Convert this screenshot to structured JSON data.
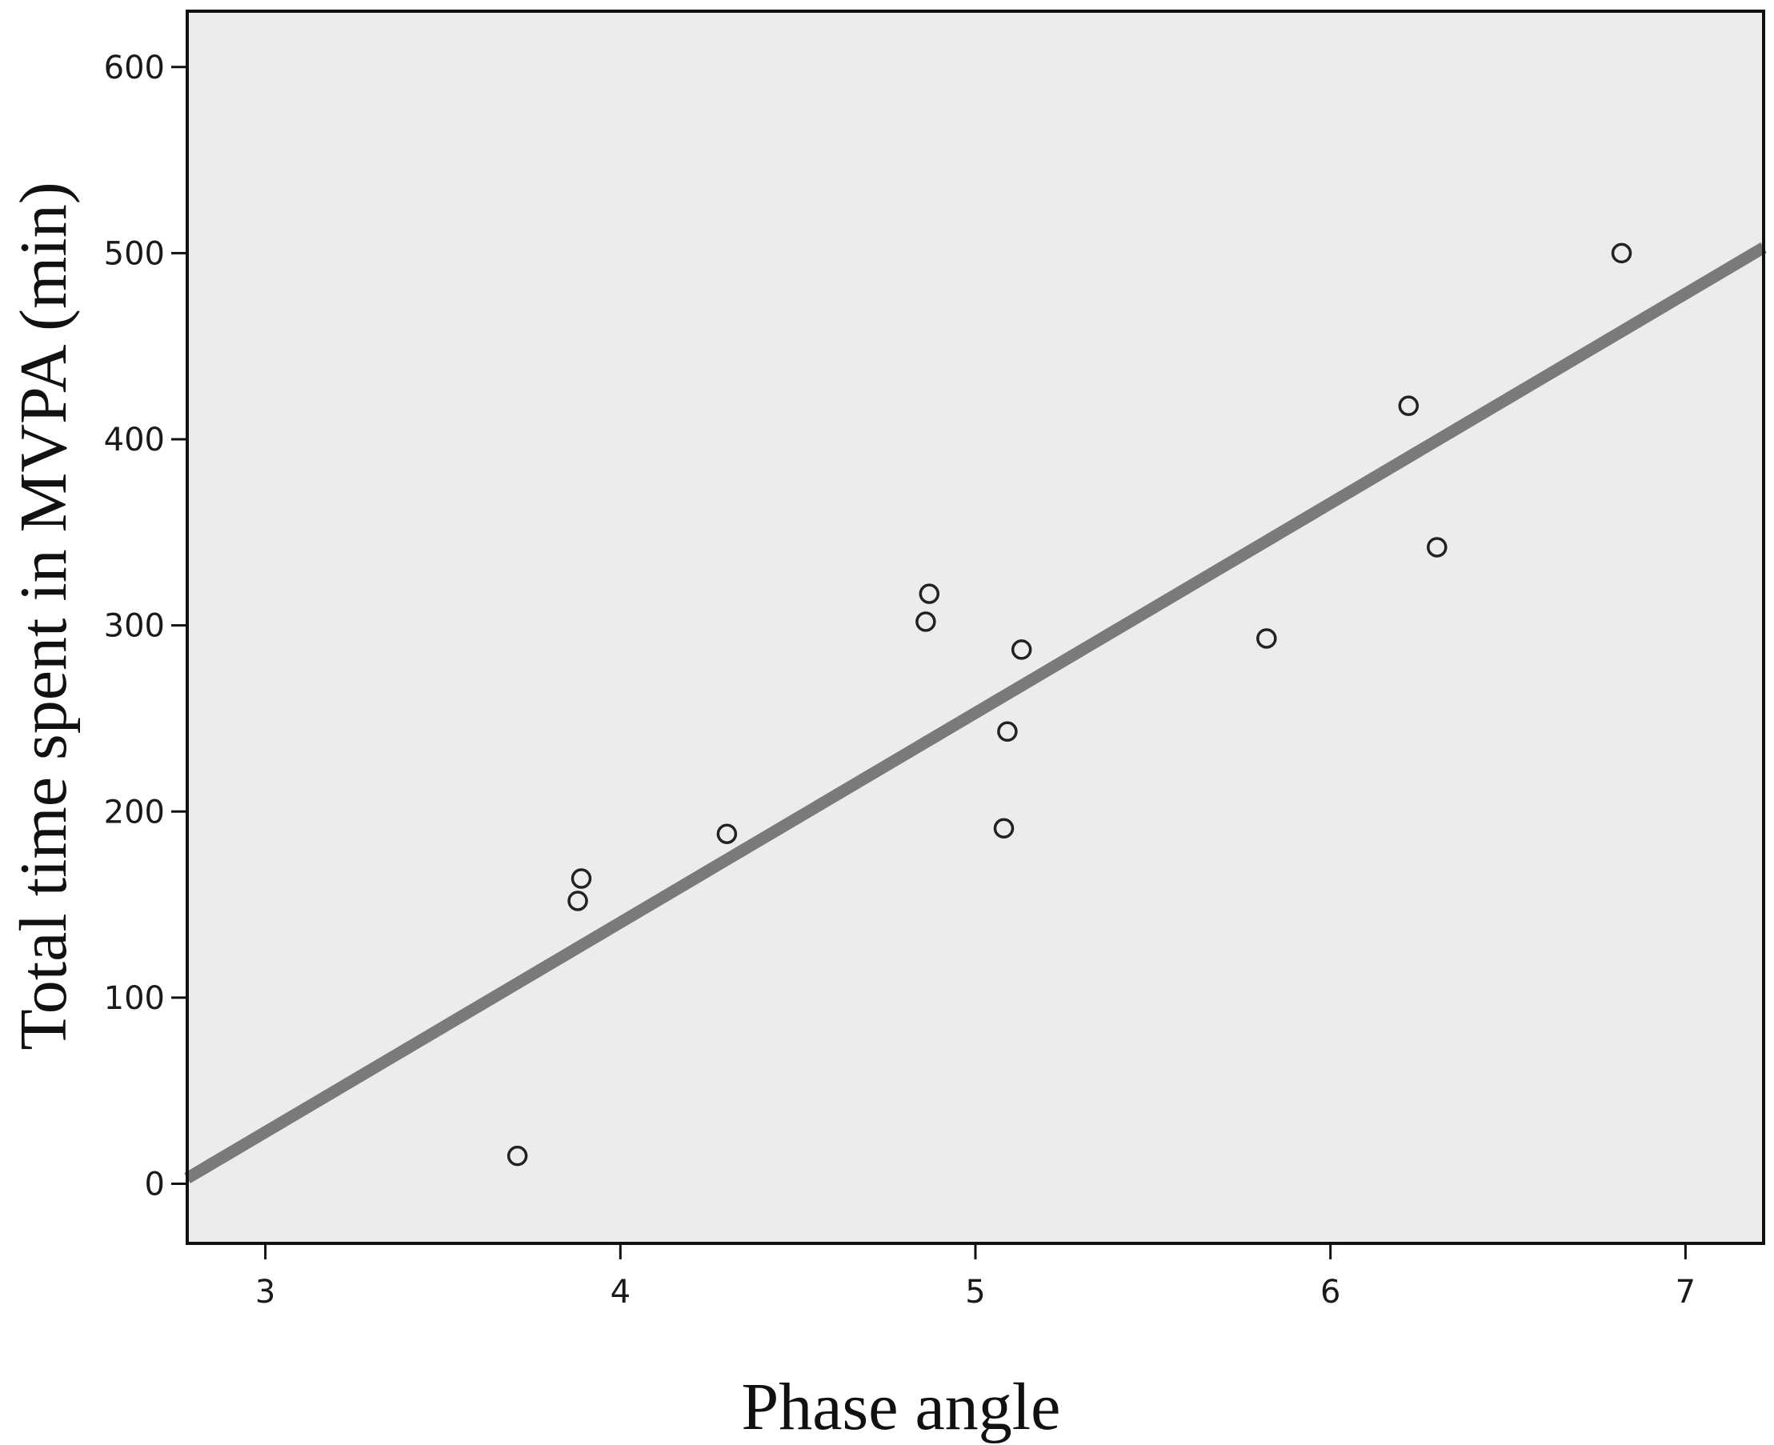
{
  "chart_data": {
    "type": "scatter",
    "title": "",
    "xlabel": "Phase angle",
    "ylabel": "Total time spent in MVPA (min)",
    "xlim": [
      2.78,
      7.22
    ],
    "ylim": [
      -32,
      630
    ],
    "x_ticks": [
      3,
      4,
      5,
      6,
      7
    ],
    "y_ticks": [
      0,
      100,
      200,
      300,
      400,
      500,
      600
    ],
    "grid": false,
    "colors": {
      "plot_background": "#ececec",
      "marker": "#222222",
      "fit_line": "#7a7a7a",
      "frame": "#111111"
    },
    "series": [
      {
        "points": [
          {
            "x": 3.71,
            "y": 15
          },
          {
            "x": 3.88,
            "y": 152
          },
          {
            "x": 3.89,
            "y": 164
          },
          {
            "x": 4.3,
            "y": 188
          },
          {
            "x": 4.86,
            "y": 302
          },
          {
            "x": 4.87,
            "y": 317
          },
          {
            "x": 5.08,
            "y": 191
          },
          {
            "x": 5.09,
            "y": 243
          },
          {
            "x": 5.13,
            "y": 287
          },
          {
            "x": 5.82,
            "y": 293
          },
          {
            "x": 6.22,
            "y": 418
          },
          {
            "x": 6.3,
            "y": 342
          },
          {
            "x": 6.82,
            "y": 500
          }
        ]
      }
    ],
    "fit_line": {
      "type": "linear",
      "x": [
        2.78,
        7.22
      ],
      "y": [
        3,
        503
      ]
    }
  }
}
